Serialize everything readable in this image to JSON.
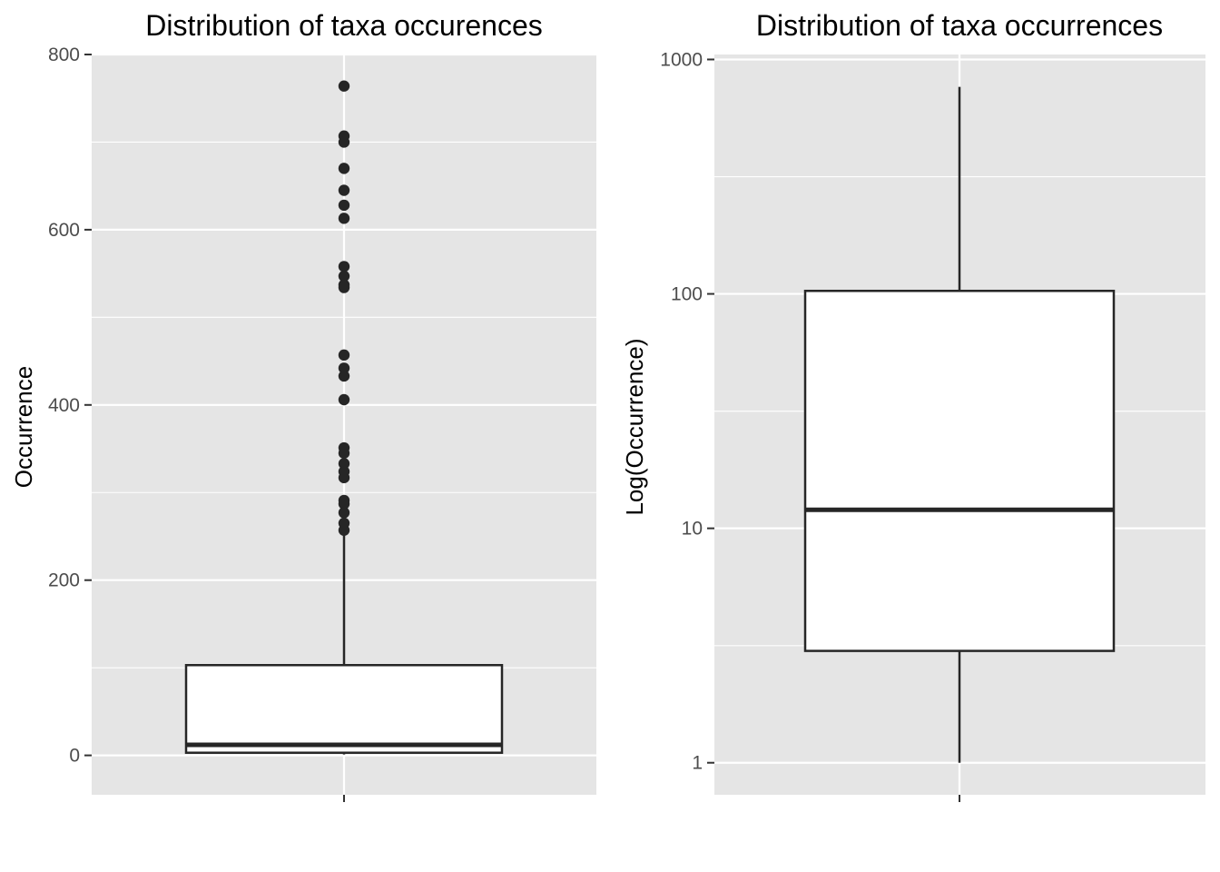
{
  "colors": {
    "panel_background": "#e5e5e5",
    "grid_line": "#ffffff",
    "box_fill": "#ffffff",
    "box_stroke": "#262626",
    "outlier_point": "#262626",
    "tick_mark": "#333333",
    "tick_label": "#4d4d4d"
  },
  "chart_data": [
    {
      "type": "box",
      "title": "Distribution of taxa occurences",
      "ylabel": "Occurrence",
      "xlabel": "",
      "y_scale": "linear",
      "ylim": [
        -45,
        800
      ],
      "y_ticks": [
        0,
        200,
        400,
        600,
        800
      ],
      "y_tick_labels": [
        "0",
        "200",
        "400",
        "600",
        "800"
      ],
      "y_minor_ticks": [
        100,
        300,
        500,
        700
      ],
      "grid": true,
      "box": {
        "whisker_low": 1,
        "q1": 3,
        "median": 12,
        "q3": 103,
        "whisker_high": 253
      },
      "outliers": [
        764,
        707,
        700,
        670,
        645,
        628,
        613,
        558,
        547,
        537,
        534,
        457,
        442,
        433,
        406,
        351,
        345,
        333,
        324,
        317,
        291,
        287,
        277,
        265,
        257
      ]
    },
    {
      "type": "box",
      "title": "Distribution of taxa occurrences",
      "ylabel": "Log(Occurrence)",
      "xlabel": "",
      "y_scale": "log10",
      "ylim": [
        0.73,
        1050
      ],
      "y_ticks": [
        1,
        10,
        100,
        1000
      ],
      "y_tick_labels": [
        "1",
        "10",
        "100",
        "1000"
      ],
      "y_minor_ticks": [
        3.16,
        31.6,
        316
      ],
      "grid": true,
      "box": {
        "whisker_low": 1,
        "q1": 3,
        "median": 12,
        "q3": 103,
        "whisker_high": 764
      },
      "outliers": []
    }
  ]
}
